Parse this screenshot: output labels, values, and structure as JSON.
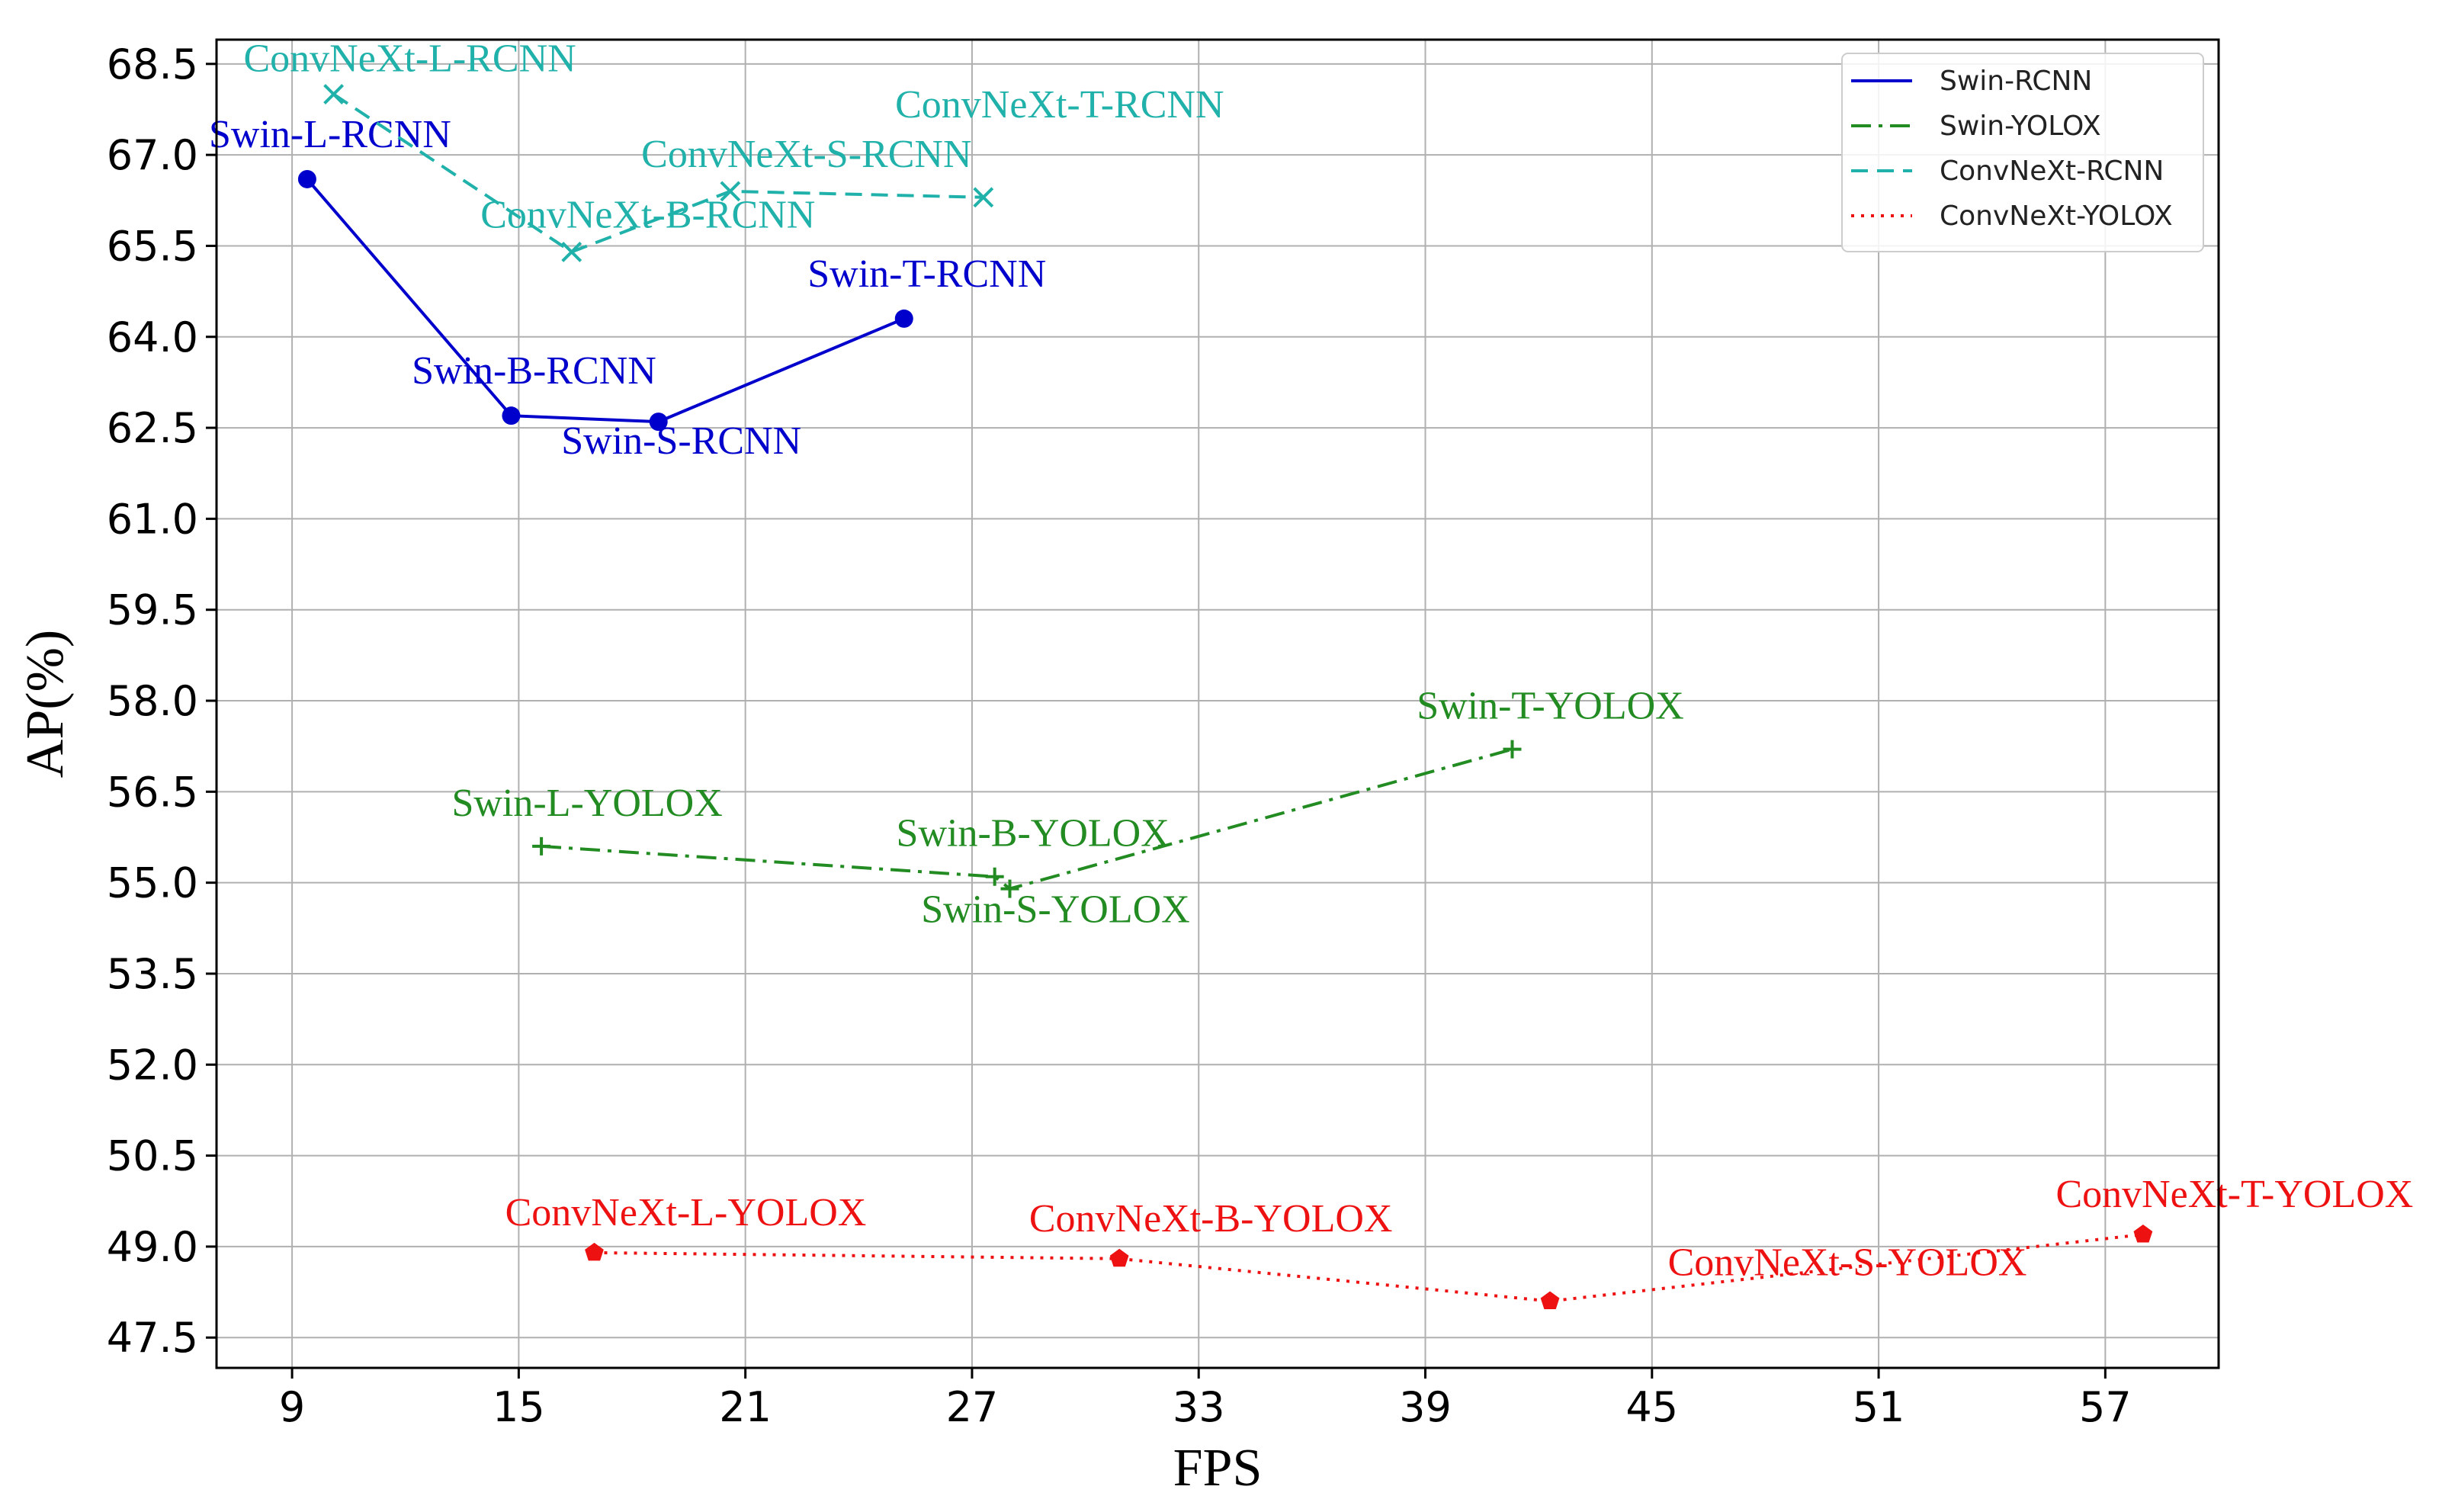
{
  "chart_data": {
    "type": "line",
    "xlabel": "FPS",
    "ylabel": "AP(%)",
    "xlim": [
      7,
      60
    ],
    "ylim": [
      47,
      68.9
    ],
    "xticks": [
      "9",
      "15",
      "21",
      "27",
      "33",
      "39",
      "45",
      "51",
      "57"
    ],
    "yticks": [
      "47.5",
      "49.0",
      "50.5",
      "52.0",
      "53.5",
      "55.0",
      "56.5",
      "58.0",
      "59.5",
      "61.0",
      "62.5",
      "64.0",
      "65.5",
      "67.0",
      "68.5"
    ],
    "grid": true,
    "legend_position": "top-right",
    "series": [
      {
        "name": "Swin-RCNN",
        "color": "#0000cc",
        "line_style": "solid",
        "marker": "circle",
        "points": [
          {
            "x": 9.4,
            "y": 66.6,
            "label": "Swin-L-RCNN"
          },
          {
            "x": 14.8,
            "y": 62.7,
            "label": "Swin-B-RCNN"
          },
          {
            "x": 18.7,
            "y": 62.6,
            "label": "Swin-S-RCNN"
          },
          {
            "x": 25.2,
            "y": 64.3,
            "label": "Swin-T-RCNN"
          }
        ]
      },
      {
        "name": "Swin-YOLOX",
        "color": "#228b22",
        "line_style": "dashdot",
        "marker": "plus",
        "points": [
          {
            "x": 15.6,
            "y": 55.6,
            "label": "Swin-L-YOLOX"
          },
          {
            "x": 27.6,
            "y": 55.1,
            "label": "Swin-B-YOLOX"
          },
          {
            "x": 28.0,
            "y": 54.9,
            "label": "Swin-S-YOLOX"
          },
          {
            "x": 41.3,
            "y": 57.2,
            "label": "Swin-T-YOLOX"
          }
        ]
      },
      {
        "name": "ConvNeXt-RCNN",
        "color": "#20b2aa",
        "line_style": "dashed",
        "marker": "x",
        "points": [
          {
            "x": 10.1,
            "y": 68.0,
            "label": "ConvNeXt-L-RCNN"
          },
          {
            "x": 16.4,
            "y": 65.4,
            "label": "ConvNeXt-B-RCNN"
          },
          {
            "x": 20.6,
            "y": 66.4,
            "label": "ConvNeXt-S-RCNN"
          },
          {
            "x": 27.3,
            "y": 66.3,
            "label": "ConvNeXt-T-RCNN"
          }
        ]
      },
      {
        "name": "ConvNeXt-YOLOX",
        "color": "#ee1111",
        "line_style": "dotted",
        "marker": "pentagon",
        "points": [
          {
            "x": 17.0,
            "y": 48.9,
            "label": "ConvNeXt-L-YOLOX"
          },
          {
            "x": 30.9,
            "y": 48.8,
            "label": "ConvNeXt-B-YOLOX"
          },
          {
            "x": 42.3,
            "y": 48.1,
            "label": "ConvNeXt-S-YOLOX"
          },
          {
            "x": 58.0,
            "y": 49.2,
            "label": "ConvNeXt-T-YOLOX"
          }
        ]
      }
    ]
  }
}
